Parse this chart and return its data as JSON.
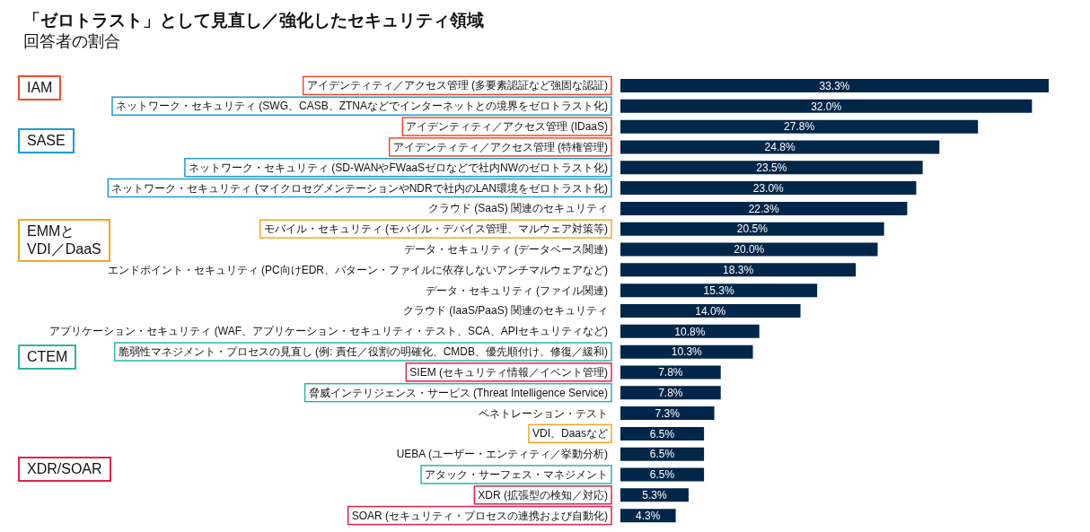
{
  "chart_data": {
    "type": "bar",
    "orientation": "horizontal",
    "relative": false,
    "title": "「ゼロトラスト」として見直し／強化したセキュリティ領域",
    "subtitle": "回答者の割合",
    "categories": [
      "アイデンティティ／アクセス管理 (多要素認証など強固な認証)",
      "ネットワーク・セキュリティ (SWG、CASB、ZTNAなどでインターネットとの境界をゼロトラスト化)",
      "アイデンティティ／アクセス管理 (IDaaS)",
      "アイデンティティ／アクセス管理 (特権管理)",
      "ネットワーク・セキュリティ (SD-WANやFWaaSゼロなどで社内NWのゼロトラスト化)",
      "ネットワーク・セキュリティ (マイクロセグメンテーションやNDRで社内のLAN環境をゼロトラスト化)",
      "クラウド (SaaS) 関連のセキュリティ",
      "モバイル・セキュリティ (モバイル・デバイス管理、マルウェア対策等)",
      "データ・セキュリティ (データベース関連)",
      "エンドポイント・セキュリティ (PC向けEDR、パターン・ファイルに依存しないアンチマルウェアなど)",
      "データ・セキュリティ (ファイル関連)",
      "クラウド (IaaS/PaaS) 関連のセキュリティ",
      "アプリケーション・セキュリティ (WAF、アプリケーション・セキュリティ・テスト、SCA、APIセキュリティなど)",
      "脆弱性マネジメント・プロセスの見直し (例: 責任／役割の明確化、CMDB、優先順付け、修復／緩和)",
      "SIEM (セキュリティ情報／イベント管理)",
      "脅威インテリジェンス・サービス (Threat Intelligence Service)",
      "ペネトレーション・テスト",
      "VDI、Daasなど",
      "UEBA (ユーザー・エンティティ／挙動分析)",
      "アタック・サーフェス・マネジメント",
      "XDR (拡張型の検知／対応)",
      "SOAR (セキュリティ・プロセスの連携および自動化)"
    ],
    "values": [
      33.3,
      32.0,
      27.8,
      24.8,
      23.5,
      23.0,
      22.3,
      20.5,
      20.0,
      18.3,
      15.3,
      14.0,
      10.8,
      10.3,
      7.8,
      7.8,
      7.3,
      6.5,
      6.5,
      6.5,
      5.3,
      4.3
    ],
    "value_labels": [
      "33.3%",
      "32.0%",
      "27.8%",
      "24.8%",
      "23.5%",
      "23.0%",
      "22.3%",
      "20.5%",
      "20.0%",
      "18.3%",
      "15.3%",
      "14.0%",
      "10.8%",
      "10.3%",
      "7.8%",
      "7.8%",
      "7.3%",
      "6.5%",
      "6.5%",
      "6.5%",
      "5.3%",
      "4.3%"
    ],
    "color": "#002649",
    "annotations": [
      "IAM",
      "SASE",
      "EMMと\nVDI／DaaS",
      "CTEM",
      "XDR/SOAR"
    ]
  }
}
